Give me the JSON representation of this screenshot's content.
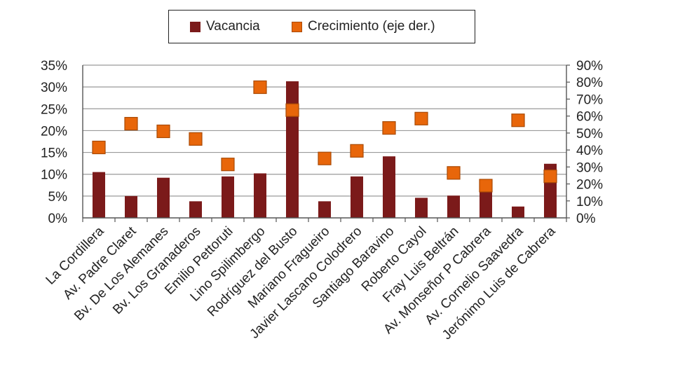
{
  "chart_data": {
    "type": "bar",
    "categories": [
      "La Cordillera",
      "Av. Padre Claret",
      "Bv. De Los Alemanes",
      "Bv. Los Granaderos",
      "Emilio Pettoruti",
      "Lino Spilimbergo",
      "Rodríguez del Busto",
      "Mariano Fragueiro",
      "Javier Lascano Colodrero",
      "Santiago Baravino",
      "Roberto Cayol",
      "Fray Luis Beltrán",
      "Av. Monseñor P Cabrera",
      "Av. Cornelio Saavedra",
      "Jerónimo Luis de Cabrera"
    ],
    "series": [
      {
        "name": "Vacancia",
        "chart": "bar",
        "axis": "left",
        "values": [
          10.5,
          5.0,
          9.2,
          3.8,
          9.5,
          10.2,
          31.3,
          3.8,
          9.5,
          14.1,
          4.6,
          5.1,
          6.7,
          2.6,
          12.4
        ]
      },
      {
        "name": "Crecimiento (eje der.)",
        "chart": "scatter",
        "axis": "right",
        "values": [
          41.5,
          55.5,
          51.0,
          46.5,
          31.5,
          77.0,
          63.5,
          35.0,
          39.5,
          53.0,
          58.5,
          26.5,
          19.0,
          57.5,
          24.5
        ]
      }
    ],
    "y_left": {
      "min": 0,
      "max": 35,
      "ticks": [
        "0%",
        "5%",
        "10%",
        "15%",
        "20%",
        "25%",
        "30%",
        "35%"
      ]
    },
    "y_right": {
      "min": 0,
      "max": 90,
      "ticks": [
        "0%",
        "10%",
        "20%",
        "30%",
        "40%",
        "50%",
        "60%",
        "70%",
        "80%",
        "90%"
      ]
    },
    "legend": {
      "position": "top-center",
      "entries": [
        "Vacancia",
        "Crecimiento (eje der.)"
      ]
    },
    "grid": true,
    "colors": {
      "bar": "#7b1a1a",
      "marker": "#e8660a",
      "marker_edge": "#a94a05",
      "grid": "#9a9a9a",
      "axis": "#555555"
    }
  }
}
